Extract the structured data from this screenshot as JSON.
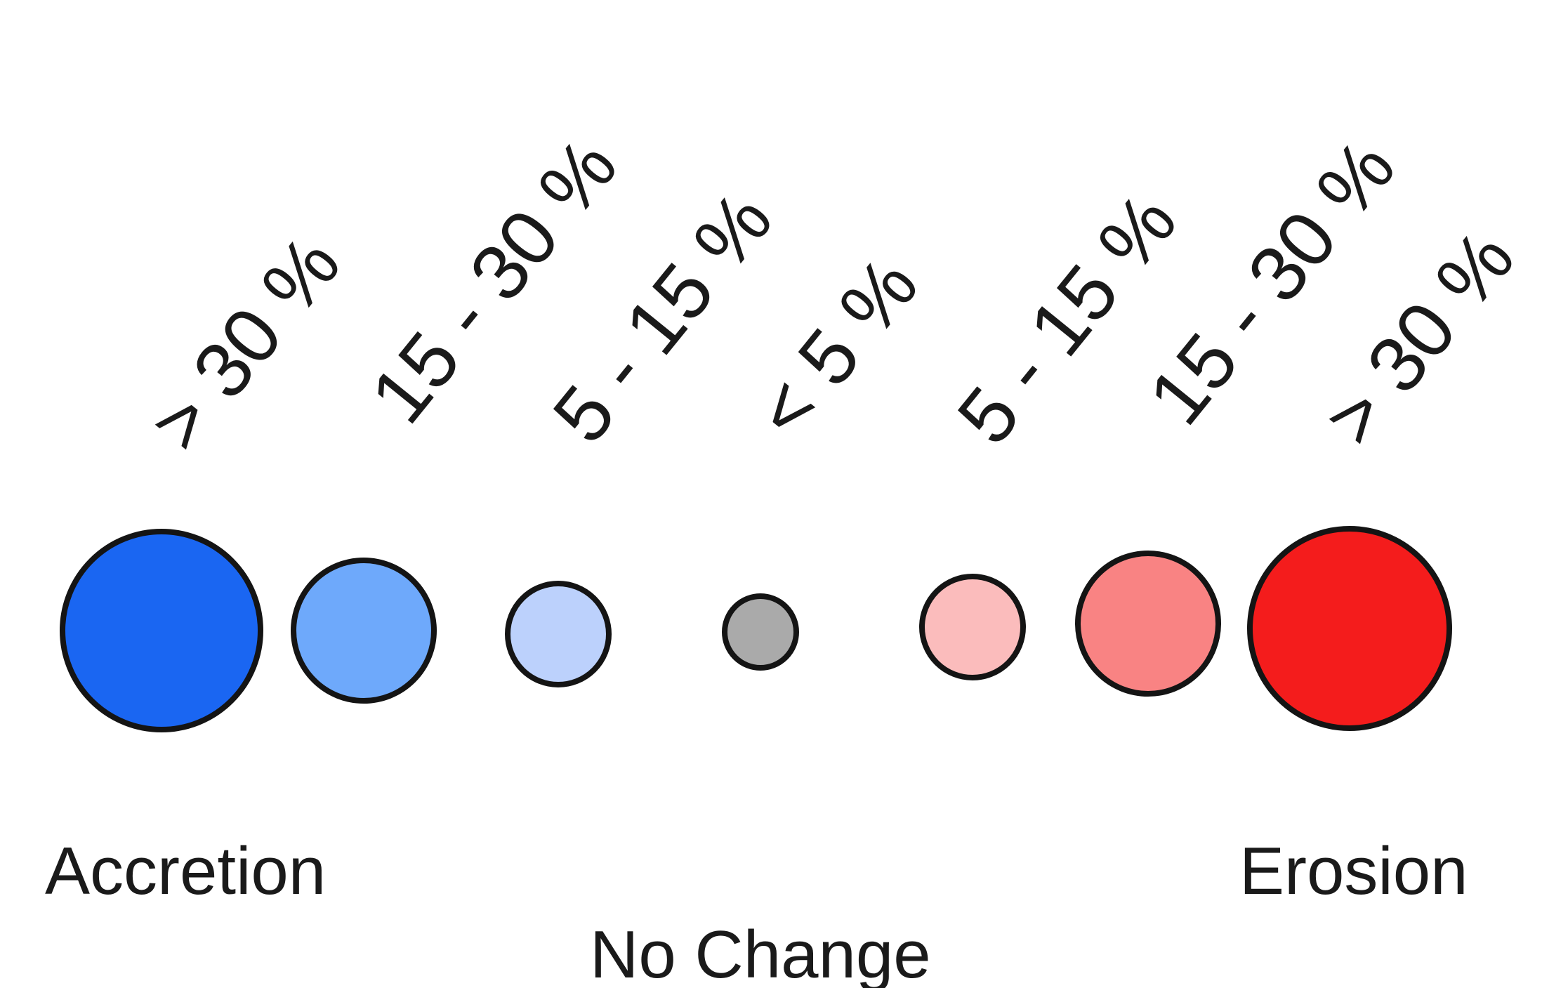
{
  "legend": {
    "classes": [
      {
        "label": "> 30 %",
        "category": "accretion",
        "color": "#1a66f2"
      },
      {
        "label": "15 - 30 %",
        "category": "accretion",
        "color": "#6ea9fb"
      },
      {
        "label": "5 - 15 %",
        "category": "accretion",
        "color": "#bcd1fc"
      },
      {
        "label": "< 5 %",
        "category": "no-change",
        "color": "#aaaaaa"
      },
      {
        "label": "5 - 15 %",
        "category": "erosion",
        "color": "#fbbcbc"
      },
      {
        "label": "15 - 30 %",
        "category": "erosion",
        "color": "#f98383"
      },
      {
        "label": "> 30 %",
        "category": "erosion",
        "color": "#f41c1c"
      }
    ],
    "left_label": "Accretion",
    "center_label": "No Change",
    "right_label": "Erosion"
  }
}
